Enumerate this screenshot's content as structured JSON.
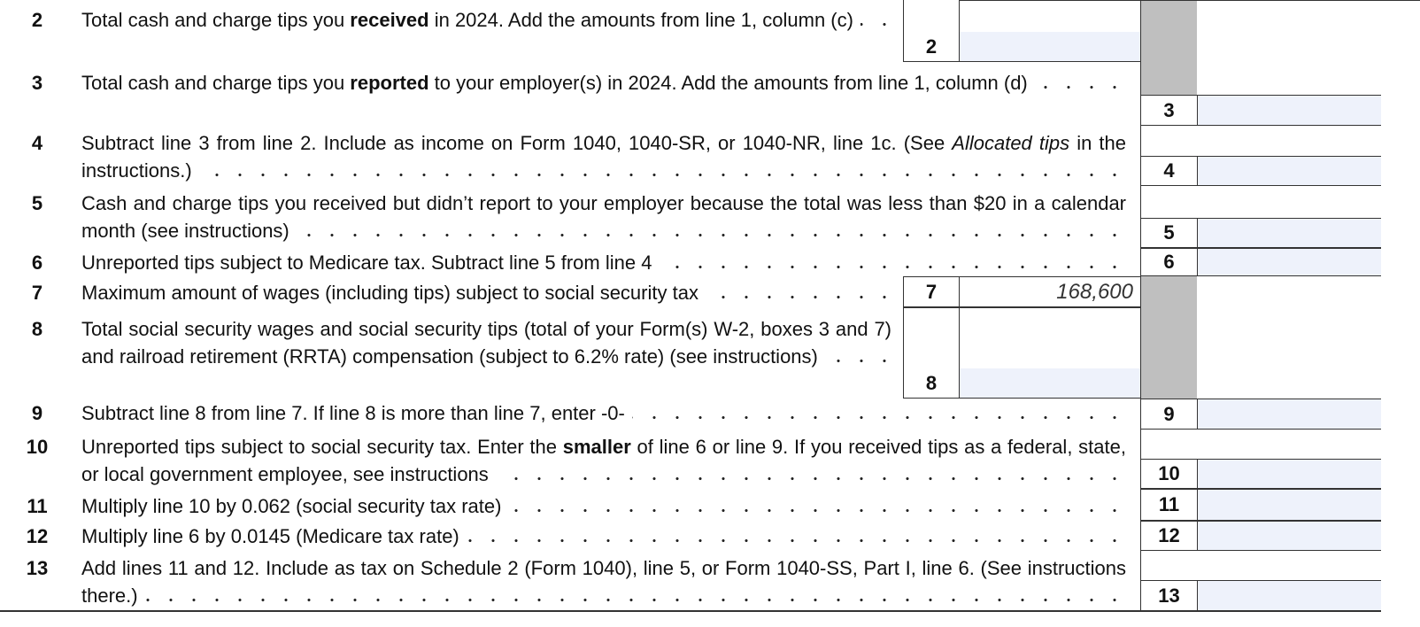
{
  "form_lines": [
    {
      "number": "2",
      "text": [
        "Total cash and charge tips you ",
        {
          "bold": "received"
        },
        " in 2024. Add the amounts from line 1, column (c)"
      ],
      "box": "2"
    },
    {
      "number": "3",
      "text": [
        "Total cash and charge tips you ",
        {
          "bold": "reported"
        },
        " to your employer(s) in 2024. Add the amounts from line 1, column (d)"
      ],
      "box": "3"
    },
    {
      "number": "4",
      "text": [
        "Subtract line 3 from line 2. Include as income on Form 1040, 1040-SR, or 1040-NR, line 1c. (See ",
        {
          "italic": "Allocated tips"
        },
        " in the instructions.)"
      ],
      "box": "4"
    },
    {
      "number": "5",
      "text": [
        "Cash and charge tips you received but didn’t report to your employer because the total was less than $20 in a calendar month (see instructions)"
      ],
      "box": "5"
    },
    {
      "number": "6",
      "text": [
        "Unreported tips subject to Medicare tax. Subtract line 5 from line 4"
      ],
      "box": "6"
    },
    {
      "number": "7",
      "text": [
        "Maximum amount of wages (including tips) subject to social security tax"
      ],
      "box": "7",
      "amount": "168,600"
    },
    {
      "number": "8",
      "text": [
        "Total social security wages and social security tips (total of your Form(s) W-2, boxes 3 and 7) and railroad retirement (RRTA) compensation (subject to 6.2% rate) (see instructions)"
      ],
      "box": "8"
    },
    {
      "number": "9",
      "text": [
        "Subtract line 8 from line 7. If line 8 is more than line 7, enter -0-"
      ],
      "box": "9"
    },
    {
      "number": "10",
      "text": [
        "Unreported tips subject to social security tax. Enter the ",
        {
          "bold": "smaller"
        },
        " of line 6 or line 9. If you received tips as a federal, state, or local government employee, see instructions"
      ],
      "box": "10"
    },
    {
      "number": "11",
      "text": [
        "Multiply line 10 by 0.062 (social security tax rate)"
      ],
      "box": "11"
    },
    {
      "number": "12",
      "text": [
        "Multiply line 6 by 0.0145 (Medicare tax rate)"
      ],
      "box": "12"
    },
    {
      "number": "13",
      "text": [
        "Add lines 11 and 12. Include as tax on Schedule 2 (Form 1040), line 5, or Form 1040-SS, Part I, line 6. (See instructions there.)"
      ],
      "box": "13"
    }
  ]
}
